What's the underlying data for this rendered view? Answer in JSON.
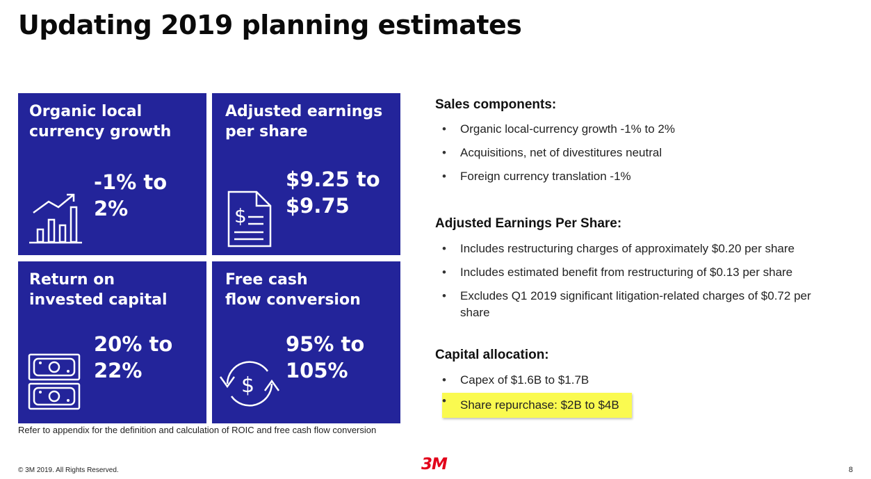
{
  "title": "Updating 2019 planning estimates",
  "tiles": [
    {
      "label_line1": "Organic local",
      "label_line2": "currency growth",
      "value_line1": "-1% to 2%",
      "value_line2": "",
      "icon": "bar-chart-growth-icon"
    },
    {
      "label_line1": "Adjusted earnings",
      "label_line2": "per share",
      "value_line1": "$9.25 to",
      "value_line2": "$9.75",
      "icon": "dollar-document-icon"
    },
    {
      "label_line1": "Return on",
      "label_line2": "invested capital",
      "value_line1": "20% to",
      "value_line2": "22%",
      "icon": "banknotes-icon"
    },
    {
      "label_line1": "Free cash",
      "label_line2": "flow conversion",
      "value_line1": "95% to",
      "value_line2": "105%",
      "icon": "dollar-cycle-icon"
    }
  ],
  "footnote": "Refer to appendix for the definition and calculation of ROIC and free cash flow conversion",
  "sections": [
    {
      "heading": "Sales components:",
      "bullets": [
        "Organic local-currency growth -1% to 2%",
        "Acquisitions, net of divestitures neutral",
        "Foreign currency translation -1%"
      ]
    },
    {
      "heading": "Adjusted Earnings Per Share:",
      "bullets": [
        "Includes restructuring charges of approximately $0.20 per share",
        "Includes estimated benefit from restructuring of $0.13 per share",
        "Excludes Q1 2019 significant litigation-related charges of $0.72 per share"
      ]
    },
    {
      "heading": "Capital allocation:",
      "bullets": [
        "Capex of $1.6B to $1.7B",
        "Share repurchase: $2B to $4B"
      ]
    }
  ],
  "copyright": "© 3M 2019. All Rights Reserved.",
  "logo": "3M",
  "page_number": "8",
  "colors": {
    "tile_bg": "#23249a",
    "logo_red": "#e2001a",
    "highlight": "#fafa50"
  }
}
